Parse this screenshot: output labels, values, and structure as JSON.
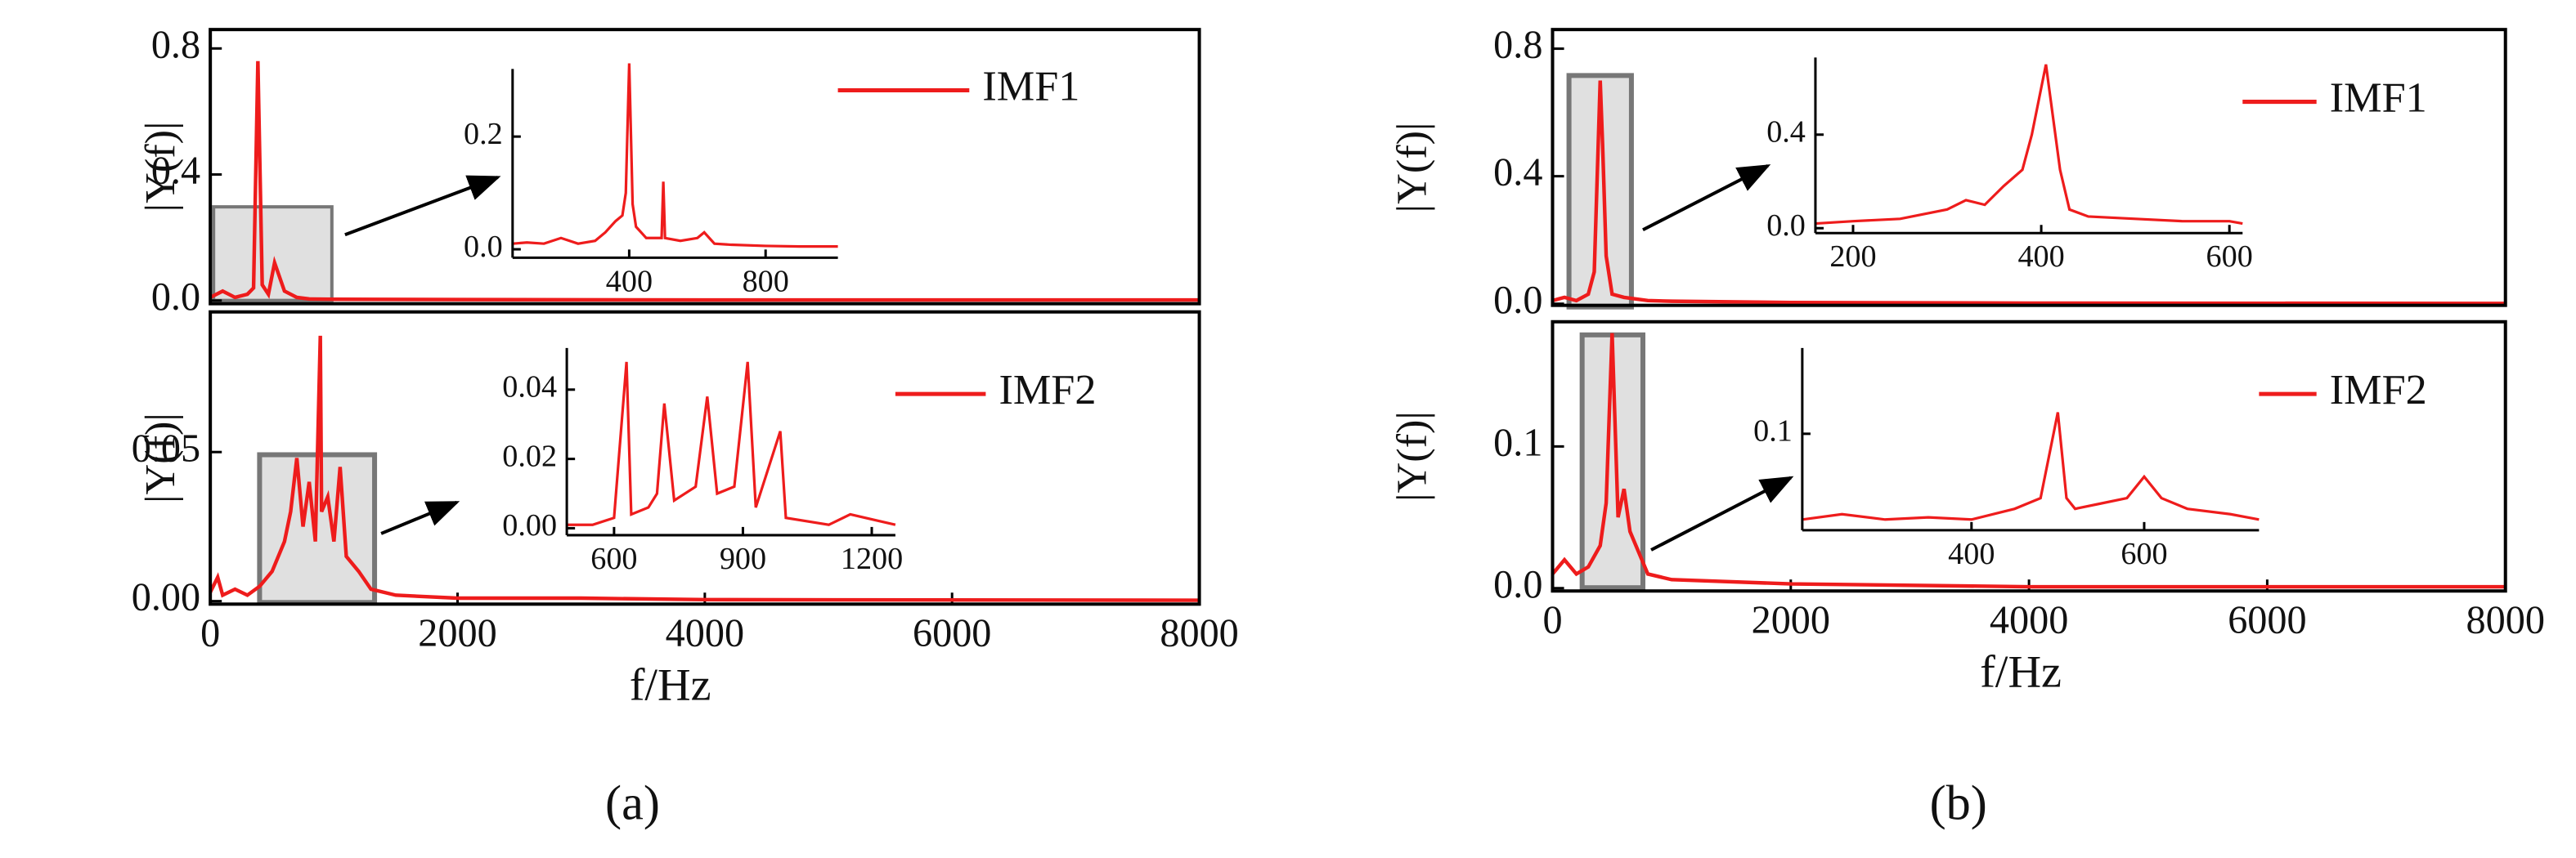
{
  "chart_data": [
    {
      "type": "line",
      "ylabel": "|Y(f)|",
      "x": [
        0,
        100,
        200,
        300,
        350,
        385,
        420,
        470,
        520,
        600,
        700,
        800,
        1000,
        2000,
        4000,
        8000
      ],
      "series": [
        {
          "name": "IMF1",
          "color": "#ee1c1c",
          "values": [
            0.01,
            0.03,
            0.01,
            0.02,
            0.04,
            0.76,
            0.05,
            0.02,
            0.12,
            0.03,
            0.01,
            0.005,
            0.004,
            0.003,
            0.002,
            0.002
          ]
        }
      ],
      "xlim": [
        0,
        8000
      ],
      "ylim": [
        -0.01,
        0.86
      ],
      "yticks": [
        {
          "value": 0,
          "label": "0.0"
        },
        0.4,
        0.8
      ]
    },
    {
      "type": "line",
      "x": [
        58,
        100,
        150,
        200,
        250,
        300,
        330,
        360,
        380,
        390,
        400,
        410,
        420,
        450,
        495,
        500,
        505,
        550,
        600,
        620,
        650,
        700,
        800,
        900,
        1012
      ],
      "series": [
        {
          "color": "#ee1c1c",
          "values": [
            0.01,
            0.012,
            0.01,
            0.02,
            0.01,
            0.015,
            0.03,
            0.05,
            0.06,
            0.1,
            0.33,
            0.08,
            0.04,
            0.02,
            0.02,
            0.12,
            0.02,
            0.015,
            0.02,
            0.03,
            0.01,
            0.008,
            0.006,
            0.005,
            0.005
          ]
        }
      ],
      "xlim": [
        58,
        1012
      ],
      "ylim": [
        -0.015,
        0.32
      ],
      "xticks": [
        400,
        800
      ],
      "yticks": [
        {
          "value": 0,
          "label": "0.0"
        },
        0.2
      ]
    },
    {
      "type": "line",
      "ylabel": "|Y(f)|",
      "xlabel": "f/Hz",
      "x": [
        0,
        60,
        100,
        200,
        300,
        400,
        500,
        600,
        650,
        700,
        750,
        800,
        850,
        890,
        900,
        950,
        1000,
        1050,
        1100,
        1200,
        1300,
        1500,
        2000,
        3000,
        4000,
        8000
      ],
      "series": [
        {
          "name": "IMF2",
          "color": "#ee1c1c",
          "values": [
            0.003,
            0.008,
            0.002,
            0.004,
            0.002,
            0.005,
            0.01,
            0.02,
            0.03,
            0.048,
            0.025,
            0.04,
            0.02,
            0.089,
            0.03,
            0.035,
            0.02,
            0.045,
            0.015,
            0.01,
            0.004,
            0.002,
            0.001,
            0.001,
            0.0005,
            0.0003
          ]
        }
      ],
      "xlim": [
        0,
        8000
      ],
      "ylim": [
        -0.001,
        0.097
      ],
      "xticks": [
        0,
        2000,
        4000,
        6000,
        8000
      ],
      "yticks": [
        {
          "value": 0,
          "label": "0.00"
        },
        0.05
      ]
    },
    {
      "type": "line",
      "x": [
        490,
        550,
        600,
        629,
        640,
        680,
        700,
        717,
        740,
        790,
        817,
        840,
        880,
        911,
        930,
        987,
        1000,
        1100,
        1150,
        1255
      ],
      "series": [
        {
          "color": "#ee1c1c",
          "values": [
            0.001,
            0.001,
            0.003,
            0.048,
            0.004,
            0.006,
            0.01,
            0.036,
            0.008,
            0.012,
            0.038,
            0.01,
            0.012,
            0.048,
            0.006,
            0.028,
            0.003,
            0.001,
            0.004,
            0.001
          ]
        }
      ],
      "xlim": [
        490,
        1255
      ],
      "ylim": [
        -0.002,
        0.052
      ],
      "xticks": [
        600,
        900,
        1200
      ],
      "yticks": [
        {
          "value": 0,
          "label": "0.00"
        },
        0.02,
        0.04
      ]
    },
    {
      "type": "line",
      "ylabel": "|Y(f)|",
      "x": [
        0,
        100,
        200,
        300,
        350,
        400,
        420,
        450,
        500,
        600,
        800,
        1000,
        2000,
        4000,
        8000
      ],
      "series": [
        {
          "name": "IMF1",
          "color": "#ee1c1c",
          "values": [
            0.01,
            0.02,
            0.01,
            0.03,
            0.1,
            0.7,
            0.5,
            0.15,
            0.03,
            0.02,
            0.01,
            0.008,
            0.004,
            0.002,
            0.001
          ]
        }
      ],
      "xlim": [
        0,
        8000
      ],
      "ylim": [
        -0.005,
        0.86
      ],
      "yticks": [
        {
          "value": 0,
          "label": "0.0"
        },
        0.4,
        0.8
      ]
    },
    {
      "type": "line",
      "x": [
        160,
        200,
        250,
        300,
        320,
        340,
        360,
        380,
        390,
        400,
        405,
        410,
        420,
        430,
        450,
        500,
        550,
        600,
        614
      ],
      "series": [
        {
          "color": "#ee1c1c",
          "values": [
            0.02,
            0.03,
            0.04,
            0.08,
            0.12,
            0.1,
            0.18,
            0.25,
            0.4,
            0.6,
            0.7,
            0.55,
            0.25,
            0.08,
            0.05,
            0.04,
            0.03,
            0.03,
            0.02
          ]
        }
      ],
      "xlim": [
        160,
        614
      ],
      "ylim": [
        -0.021,
        0.73
      ],
      "xticks": [
        200,
        400,
        600
      ],
      "yticks": [
        {
          "value": 0,
          "label": "0.0"
        },
        0.4
      ]
    },
    {
      "type": "line",
      "ylabel": "|Y(f)|",
      "xlabel": "f/Hz",
      "x": [
        0,
        100,
        200,
        300,
        400,
        450,
        500,
        550,
        600,
        650,
        700,
        800,
        1000,
        2000,
        4000,
        8000
      ],
      "series": [
        {
          "name": "IMF2",
          "color": "#ee1c1c",
          "values": [
            0.01,
            0.02,
            0.01,
            0.015,
            0.03,
            0.06,
            0.18,
            0.05,
            0.07,
            0.04,
            0.03,
            0.01,
            0.006,
            0.003,
            0.001,
            0.001
          ]
        }
      ],
      "xlim": [
        0,
        8000
      ],
      "ylim": [
        -0.002,
        0.188
      ],
      "xticks": [
        0,
        2000,
        4000,
        6000,
        8000
      ],
      "yticks": [
        {
          "value": 0,
          "label": "0.0"
        },
        0.1
      ]
    },
    {
      "type": "line",
      "x": [
        204,
        250,
        300,
        350,
        400,
        450,
        480,
        500,
        510,
        520,
        550,
        580,
        600,
        620,
        650,
        700,
        733
      ],
      "series": [
        {
          "color": "#ee1c1c",
          "values": [
            0.02,
            0.025,
            0.02,
            0.022,
            0.02,
            0.03,
            0.04,
            0.12,
            0.04,
            0.03,
            0.035,
            0.04,
            0.06,
            0.04,
            0.03,
            0.025,
            0.02
          ]
        }
      ],
      "xlim": [
        204,
        733
      ],
      "ylim": [
        0.01,
        0.18
      ],
      "xticks": [
        400,
        600
      ],
      "yticks": [
        0.1
      ]
    }
  ],
  "captions": [
    "(a)",
    "(b)"
  ]
}
